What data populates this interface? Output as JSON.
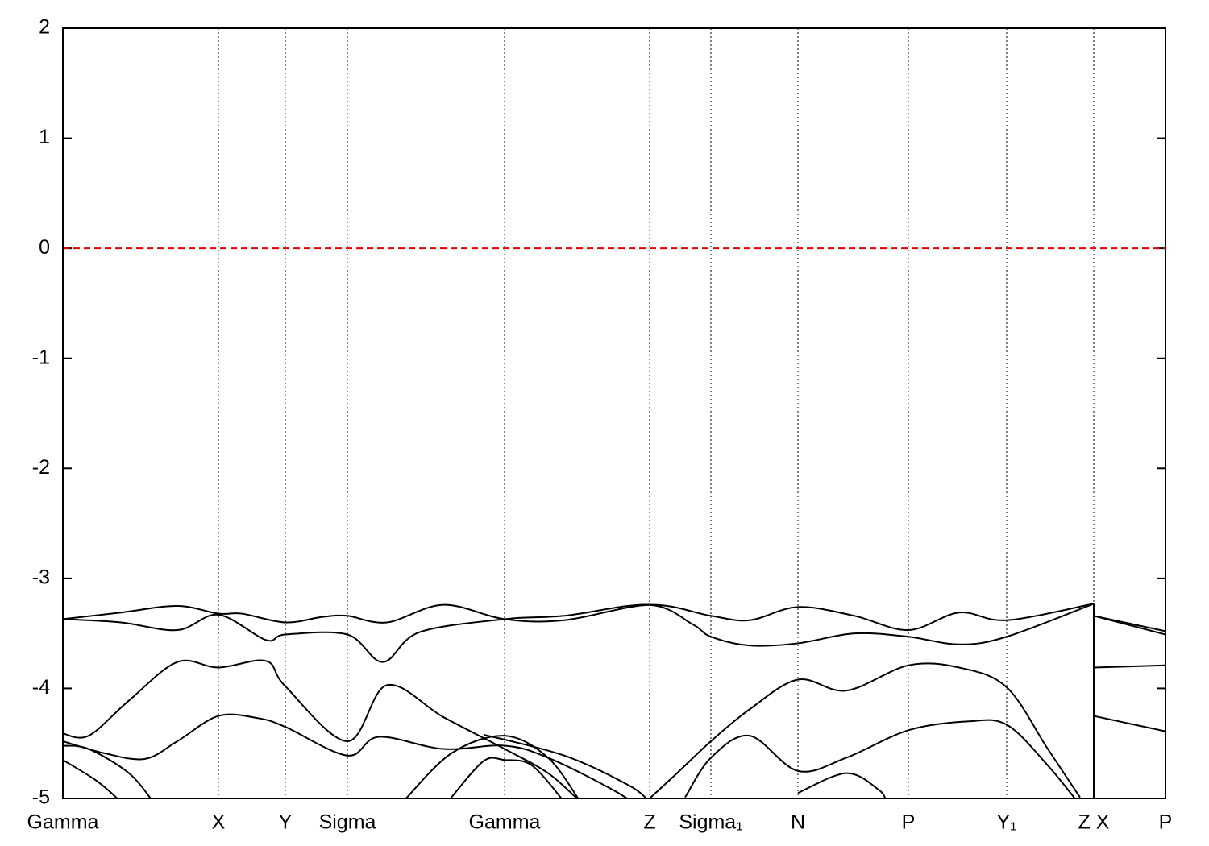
{
  "chart_data": {
    "type": "line",
    "xlim": [
      0,
      1368
    ],
    "ylim": [
      -5,
      2
    ],
    "yticks": [
      2,
      1,
      0,
      -1,
      -2,
      -3,
      -4,
      -5
    ],
    "xticks": [
      {
        "value": 0,
        "label": "Gamma"
      },
      {
        "value": 193,
        "label": "X"
      },
      {
        "value": 276,
        "label": "Y"
      },
      {
        "value": 353,
        "label": "Sigma"
      },
      {
        "value": 548,
        "label": "Gamma"
      },
      {
        "value": 728,
        "label": "Z"
      },
      {
        "value": 804,
        "label": "Sigma₁"
      },
      {
        "value": 912,
        "label": "N"
      },
      {
        "value": 1049,
        "label": "P"
      },
      {
        "value": 1171,
        "label": "Y₁"
      },
      {
        "value": 1279,
        "label": "Z X"
      },
      {
        "value": 1368,
        "label": "P"
      }
    ],
    "xgrid": true,
    "reference_line": {
      "value": 0,
      "color": "#e00000"
    },
    "series": [
      {
        "color": "#000000",
        "x": [
          0,
          72,
          142,
          193,
          222,
          276,
          322,
          353,
          402,
          472,
          548,
          622,
          728,
          804,
          852,
          912,
          982,
          1049,
          1112,
          1171,
          1279
        ],
        "values": [
          -3.37,
          -3.31,
          -3.25,
          -3.32,
          -3.32,
          -3.4,
          -3.35,
          -3.34,
          -3.4,
          -3.24,
          -3.37,
          -3.38,
          -3.24,
          -3.34,
          -3.38,
          -3.26,
          -3.34,
          -3.47,
          -3.31,
          -3.38,
          -3.23
        ]
      },
      {
        "color": "#000000",
        "x": [
          0,
          72,
          142,
          193,
          252,
          276,
          353,
          397,
          442,
          548,
          622,
          728,
          782,
          804,
          852,
          912,
          982,
          1049,
          1112,
          1171,
          1279
        ],
        "values": [
          -3.37,
          -3.4,
          -3.47,
          -3.33,
          -3.56,
          -3.51,
          -3.51,
          -3.76,
          -3.49,
          -3.37,
          -3.34,
          -3.24,
          -3.42,
          -3.53,
          -3.61,
          -3.59,
          -3.5,
          -3.53,
          -3.6,
          -3.53,
          -3.23
        ]
      },
      {
        "color": "#000000",
        "x": [
          1279,
          1368
        ],
        "values": [
          -3.34,
          -3.48
        ]
      },
      {
        "color": "#000000",
        "x": [
          1279,
          1368
        ],
        "values": [
          -3.34,
          -3.51
        ]
      },
      {
        "color": "#000000",
        "x": [
          1279,
          1368
        ],
        "values": [
          -3.81,
          -3.79
        ]
      },
      {
        "color": "#000000",
        "x": [
          1279,
          1368
        ],
        "values": [
          -4.25,
          -4.39
        ]
      },
      {
        "color": "#000000",
        "x": [
          1279,
          1279
        ],
        "values": [
          -3.23,
          -5
        ]
      },
      {
        "color": "#000000",
        "x": [
          0,
          32,
          82,
          142,
          193,
          252,
          276,
          353,
          402,
          472,
          548,
          602,
          642
        ],
        "values": [
          -4.41,
          -4.43,
          -4.11,
          -3.76,
          -3.81,
          -3.75,
          -3.98,
          -4.48,
          -3.97,
          -4.26,
          -4.55,
          -4.77,
          -5.03
        ]
      },
      {
        "color": "#000000",
        "x": [
          728,
          762,
          804,
          852,
          912,
          972,
          1049,
          1112,
          1171,
          1222,
          1262
        ],
        "values": [
          -5,
          -4.77,
          -4.48,
          -4.19,
          -3.92,
          -4.02,
          -3.79,
          -3.81,
          -3.99,
          -4.55,
          -4.99
        ]
      },
      {
        "color": "#000000",
        "x": [
          0,
          52,
          102,
          142,
          193,
          242,
          276,
          353,
          392,
          472,
          548,
          602,
          682,
          728
        ],
        "values": [
          -4.48,
          -4.59,
          -4.64,
          -4.48,
          -4.25,
          -4.27,
          -4.35,
          -4.61,
          -4.44,
          -4.55,
          -4.52,
          -4.63,
          -4.92,
          -5.14
        ]
      },
      {
        "color": "#000000",
        "x": [
          772,
          804,
          852,
          912,
          972,
          1049,
          1122,
          1171,
          1222,
          1262
        ],
        "values": [
          -4.99,
          -4.63,
          -4.43,
          -4.75,
          -4.63,
          -4.38,
          -4.3,
          -4.33,
          -4.7,
          -5.06
        ]
      },
      {
        "color": "#000000",
        "x": [
          0,
          32,
          82,
          112
        ],
        "values": [
          -4.52,
          -4.55,
          -4.77,
          -5.03
        ]
      },
      {
        "color": "#000000",
        "x": [
          0,
          42,
          72
        ],
        "values": [
          -4.65,
          -4.84,
          -5.03
        ]
      },
      {
        "color": "#000000",
        "x": [
          422,
          482,
          548,
          602,
          642
        ],
        "values": [
          -5.03,
          -4.59,
          -4.43,
          -4.63,
          -5.03
        ]
      },
      {
        "color": "#000000",
        "x": [
          482,
          522,
          548,
          582,
          622
        ],
        "values": [
          -4.99,
          -4.66,
          -4.65,
          -4.7,
          -5.03
        ]
      },
      {
        "color": "#000000",
        "x": [
          912,
          972,
          1012,
          1022
        ],
        "values": [
          -4.95,
          -4.77,
          -4.92,
          -5.03
        ]
      },
      {
        "color": "#000000",
        "x": [
          522,
          622,
          702,
          728
        ],
        "values": [
          -4.42,
          -4.61,
          -4.88,
          -5.03
        ]
      }
    ]
  }
}
